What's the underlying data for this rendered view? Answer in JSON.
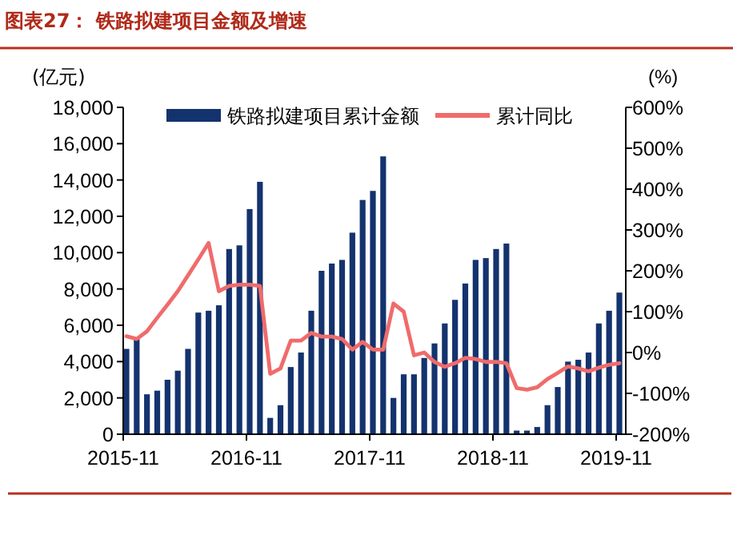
{
  "chart_data": {
    "type": "bar",
    "title": "图表27：  铁路拟建项目金额及增速",
    "categories": [
      "2015-11",
      null,
      null,
      null,
      null,
      null,
      null,
      null,
      null,
      null,
      null,
      null,
      "2016-11",
      null,
      null,
      null,
      null,
      null,
      null,
      null,
      null,
      null,
      null,
      null,
      "2017-11",
      null,
      null,
      null,
      null,
      null,
      null,
      null,
      null,
      null,
      null,
      null,
      "2018-11",
      null,
      null,
      null,
      null,
      null,
      null,
      null,
      null,
      null,
      null,
      null,
      "2019-11"
    ],
    "ylabel": "(亿元)",
    "y2label": "(%)",
    "series": [
      {
        "name": "铁路拟建项目累计金额",
        "color": "#14336e",
        "values": [
          4700,
          5300,
          2200,
          2400,
          3000,
          3500,
          4700,
          6700,
          6800,
          7100,
          10200,
          10400,
          12400,
          13900,
          900,
          1600,
          3700,
          4500,
          6800,
          9000,
          9400,
          9600,
          11100,
          12900,
          13400,
          15300,
          2000,
          3300,
          3300,
          4200,
          5000,
          6100,
          7400,
          8300,
          9600,
          9700,
          10200,
          10500,
          200,
          200,
          400,
          1600,
          2600,
          4000,
          4100,
          4500,
          6100,
          6800,
          7800
        ]
      },
      {
        "name": "累计同比",
        "type": "line",
        "axis": "y2",
        "color": "#f06b6b",
        "values": [
          40,
          33,
          52,
          85,
          117,
          150,
          189,
          228,
          268,
          150,
          163,
          166,
          166,
          163,
          -52,
          -39,
          29,
          29,
          48,
          39,
          39,
          33,
          7,
          26,
          7,
          7,
          120,
          100,
          -7,
          0,
          -23,
          -35,
          -26,
          -13,
          -16,
          -23,
          -23,
          -26,
          -87,
          -91,
          -85,
          -65,
          -50,
          -34,
          -39,
          -46,
          -37,
          -30,
          -26
        ]
      }
    ],
    "ylim": [
      0,
      18000
    ],
    "yticks": [
      {
        "value": 0,
        "label": "0"
      },
      {
        "value": 2000,
        "label": "2,000"
      },
      {
        "value": 4000,
        "label": "4,000"
      },
      {
        "value": 6000,
        "label": "6,000"
      },
      {
        "value": 8000,
        "label": "8,000"
      },
      {
        "value": 10000,
        "label": "10,000"
      },
      {
        "value": 12000,
        "label": "12,000"
      },
      {
        "value": 14000,
        "label": "14,000"
      },
      {
        "value": 16000,
        "label": "16,000"
      },
      {
        "value": 18000,
        "label": "18,000"
      }
    ],
    "y2lim": [
      -200,
      600
    ],
    "y2ticks": [
      {
        "value": -200,
        "label": "-200%"
      },
      {
        "value": -100,
        "label": "-100%"
      },
      {
        "value": 0,
        "label": "0%"
      },
      {
        "value": 100,
        "label": "100%"
      },
      {
        "value": 200,
        "label": "200%"
      },
      {
        "value": 300,
        "label": "300%"
      },
      {
        "value": 400,
        "label": "400%"
      },
      {
        "value": 500,
        "label": "500%"
      },
      {
        "value": 600,
        "label": "600%"
      }
    ],
    "legend": "top",
    "grid": false
  }
}
